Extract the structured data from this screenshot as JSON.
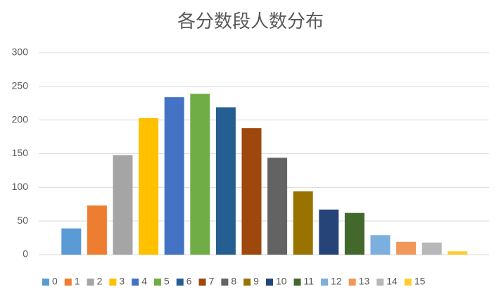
{
  "chart_data": {
    "type": "bar",
    "title": "各分数段人数分布",
    "categories": [
      "0",
      "1",
      "2",
      "3",
      "4",
      "5",
      "6",
      "7",
      "8",
      "9",
      "10",
      "11",
      "12",
      "13",
      "14",
      "15"
    ],
    "values": [
      39,
      73,
      148,
      203,
      234,
      239,
      219,
      188,
      144,
      94,
      67,
      62,
      29,
      19,
      18,
      5
    ],
    "colors": [
      "#5b9bd5",
      "#ed7d31",
      "#a5a5a5",
      "#ffc000",
      "#4472c4",
      "#70ad47",
      "#255e91",
      "#9e480e",
      "#636363",
      "#997300",
      "#264478",
      "#43682b",
      "#7cafdd",
      "#f1975a",
      "#b7b7b7",
      "#ffcd33"
    ],
    "ylim": [
      0,
      300
    ],
    "yticks": [
      0,
      50,
      100,
      150,
      200,
      250,
      300
    ],
    "grid": true,
    "legend": "bottom"
  }
}
